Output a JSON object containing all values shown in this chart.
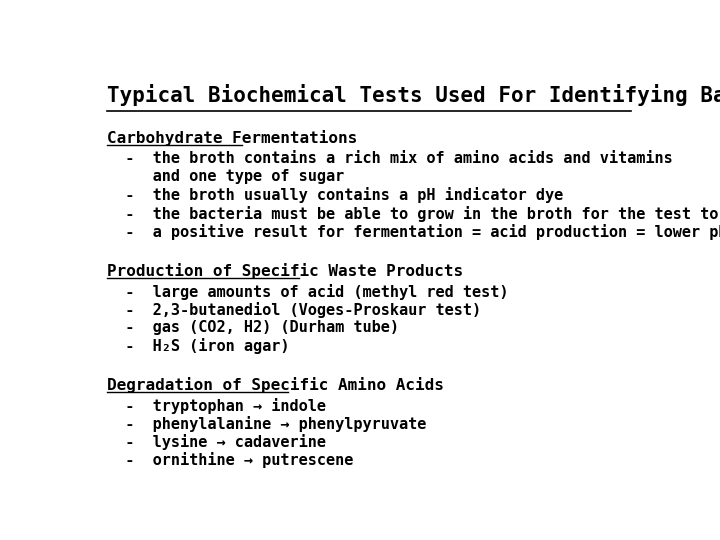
{
  "title": "Typical Biochemical Tests Used For Identifying Bacteria",
  "background_color": "#ffffff",
  "text_color": "#000000",
  "title_fontsize": 15,
  "section_fontsize": 11.5,
  "body_fontsize": 11,
  "sections": [
    {
      "heading": "Carbohydrate Fermentations",
      "items": [
        "  -  the broth contains a rich mix of amino acids and vitamins",
        "     and one type of sugar",
        "  -  the broth usually contains a pH indicator dye",
        "  -  the bacteria must be able to grow in the broth for the test to be valid",
        "  -  a positive result for fermentation = acid production = lower pH"
      ]
    },
    {
      "heading": "Production of Specific Waste Products",
      "items": [
        "  -  large amounts of acid (methyl red test)",
        "  -  2,3-butanediol (Voges-Proskaur test)",
        "  -  gas (CO2, H2) (Durham tube)",
        "  -  H₂S (iron agar)"
      ]
    },
    {
      "heading": "Degradation of Specific Amino Acids",
      "items": [
        "  -  tryptophan → indole",
        "  -  phenylalanine → phenylpyruvate",
        "  -  lysine → cadaverine",
        "  -  ornithine → putrescene"
      ]
    }
  ]
}
